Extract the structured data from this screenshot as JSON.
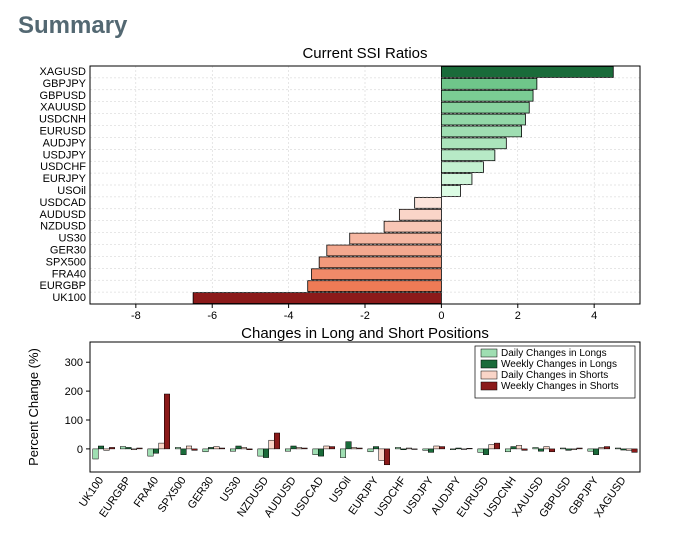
{
  "header": "Summary",
  "chart1": {
    "title": "Current SSI Ratios",
    "type": "bar-horizontal",
    "xlim": [
      -9.2,
      5.2
    ],
    "xticks": [
      -8,
      -6,
      -4,
      -2,
      0,
      2,
      4
    ],
    "bars": [
      {
        "label": "XAGUSD",
        "value": 4.5,
        "color": "#1a6b3a"
      },
      {
        "label": "GBPJPY",
        "value": 2.5,
        "color": "#6fc68a"
      },
      {
        "label": "GBPUSD",
        "value": 2.4,
        "color": "#7bcc94"
      },
      {
        "label": "XAUUSD",
        "value": 2.3,
        "color": "#87d29e"
      },
      {
        "label": "USDCNH",
        "value": 2.2,
        "color": "#93d8a8"
      },
      {
        "label": "EURUSD",
        "value": 2.1,
        "color": "#9fdeb2"
      },
      {
        "label": "AUDJPY",
        "value": 1.7,
        "color": "#abe4bc"
      },
      {
        "label": "USDJPY",
        "value": 1.4,
        "color": "#b7eac6"
      },
      {
        "label": "USDCHF",
        "value": 1.1,
        "color": "#c3f0d0"
      },
      {
        "label": "EURJPY",
        "value": 0.8,
        "color": "#cff6da"
      },
      {
        "label": "USOil",
        "value": 0.5,
        "color": "#dbfce4"
      },
      {
        "label": "USDCAD",
        "value": -0.7,
        "color": "#fce4db"
      },
      {
        "label": "AUDUSD",
        "value": -1.1,
        "color": "#fad5c8"
      },
      {
        "label": "NZDUSD",
        "value": -1.5,
        "color": "#f8c6b5"
      },
      {
        "label": "US30",
        "value": -2.4,
        "color": "#f6b7a2"
      },
      {
        "label": "GER30",
        "value": -3.0,
        "color": "#f4a88f"
      },
      {
        "label": "SPX500",
        "value": -3.2,
        "color": "#f2997c"
      },
      {
        "label": "FRA40",
        "value": -3.4,
        "color": "#f08a69"
      },
      {
        "label": "EURGBP",
        "value": -3.5,
        "color": "#ee7b56"
      },
      {
        "label": "UK100",
        "value": -6.5,
        "color": "#8b1a1a"
      }
    ],
    "bar_border": "#000",
    "bg": "#fff",
    "grid": true
  },
  "chart2": {
    "title": "Changes in Long and Short Positions",
    "ylabel": "Percent Change (%)",
    "type": "bar-grouped",
    "ylim": [
      -80,
      370
    ],
    "yticks": [
      0,
      100,
      200,
      300
    ],
    "legend": [
      {
        "label": "Daily Changes in Longs",
        "color": "#9fdeb2"
      },
      {
        "label": "Weekly Changes in Longs",
        "color": "#1a6b3a"
      },
      {
        "label": "Daily Changes in Shorts",
        "color": "#fad5c8"
      },
      {
        "label": "Weekly Changes in Shorts",
        "color": "#8b1a1a"
      }
    ],
    "categories": [
      {
        "label": "UK100",
        "values": [
          -35,
          10,
          -5,
          5
        ]
      },
      {
        "label": "EURGBP",
        "values": [
          8,
          5,
          -3,
          3
        ]
      },
      {
        "label": "FRA40",
        "values": [
          -25,
          -15,
          20,
          190
        ]
      },
      {
        "label": "SPX500",
        "values": [
          5,
          -20,
          10,
          -5
        ]
      },
      {
        "label": "GER30",
        "values": [
          -10,
          5,
          8,
          3
        ]
      },
      {
        "label": "US30",
        "values": [
          -8,
          10,
          5,
          -3
        ]
      },
      {
        "label": "NZDUSD",
        "values": [
          -25,
          -30,
          30,
          55
        ]
      },
      {
        "label": "AUDUSD",
        "values": [
          -8,
          10,
          5,
          3
        ]
      },
      {
        "label": "USDCAD",
        "values": [
          -20,
          -25,
          10,
          8
        ]
      },
      {
        "label": "USOil",
        "values": [
          -30,
          25,
          5,
          3
        ]
      },
      {
        "label": "EURJPY",
        "values": [
          -10,
          8,
          -40,
          -55
        ]
      },
      {
        "label": "USDCHF",
        "values": [
          5,
          -3,
          3,
          -2
        ]
      },
      {
        "label": "USDJPY",
        "values": [
          -5,
          -12,
          10,
          8
        ]
      },
      {
        "label": "AUDJPY",
        "values": [
          -3,
          3,
          -2,
          2
        ]
      },
      {
        "label": "EURUSD",
        "values": [
          -12,
          -20,
          15,
          20
        ]
      },
      {
        "label": "USDCNH",
        "values": [
          -10,
          8,
          12,
          -5
        ]
      },
      {
        "label": "XAUUSD",
        "values": [
          5,
          -8,
          8,
          -10
        ]
      },
      {
        "label": "GBPUSD",
        "values": [
          3,
          -5,
          -3,
          3
        ]
      },
      {
        "label": "GBPJPY",
        "values": [
          -8,
          -20,
          5,
          8
        ]
      },
      {
        "label": "XAGUSD",
        "values": [
          3,
          -4,
          -5,
          -12
        ]
      }
    ],
    "bar_border": "#000",
    "bg": "#fff"
  }
}
